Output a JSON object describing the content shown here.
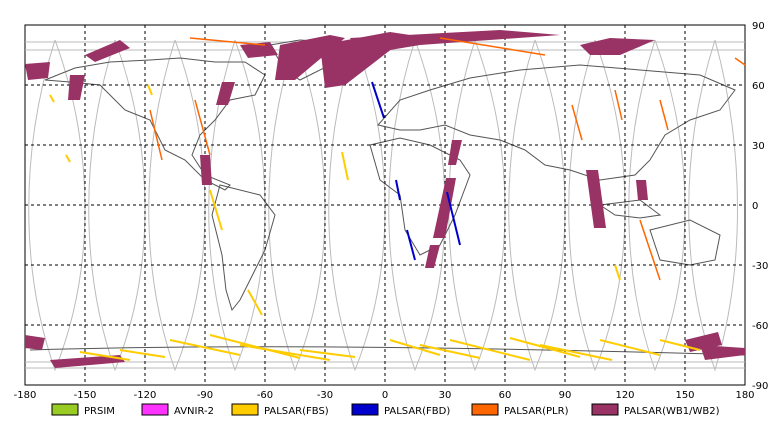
{
  "map": {
    "lon_range": [
      -180,
      180
    ],
    "lat_range": [
      -90,
      90
    ],
    "lon_ticks": [
      "-180",
      "-150",
      "-120",
      "-90",
      "-60",
      "-30",
      "0",
      "30",
      "60",
      "90",
      "120",
      "150",
      "180"
    ],
    "lat_ticks": [
      "90",
      "60",
      "30",
      "0",
      "-30",
      "-60",
      "-90"
    ],
    "grid": "dashed"
  },
  "legend": [
    {
      "key": "prism",
      "label": "PRSIM",
      "color": "#99cc22"
    },
    {
      "key": "avnir2",
      "label": "AVNIR-2",
      "color": "#ff33ff"
    },
    {
      "key": "fbs",
      "label": "PALSAR(FBS)",
      "color": "#ffcc00"
    },
    {
      "key": "fbd",
      "label": "PALSAR(FBD)",
      "color": "#0000cc"
    },
    {
      "key": "plr",
      "label": "PALSAR(PLR)",
      "color": "#ff6600"
    },
    {
      "key": "wb",
      "label": "PALSAR(WB1/WB2)",
      "color": "#993366"
    }
  ],
  "colors": {
    "land": "#555555",
    "orbit": "#bbbbbb",
    "grid": "#000000"
  }
}
